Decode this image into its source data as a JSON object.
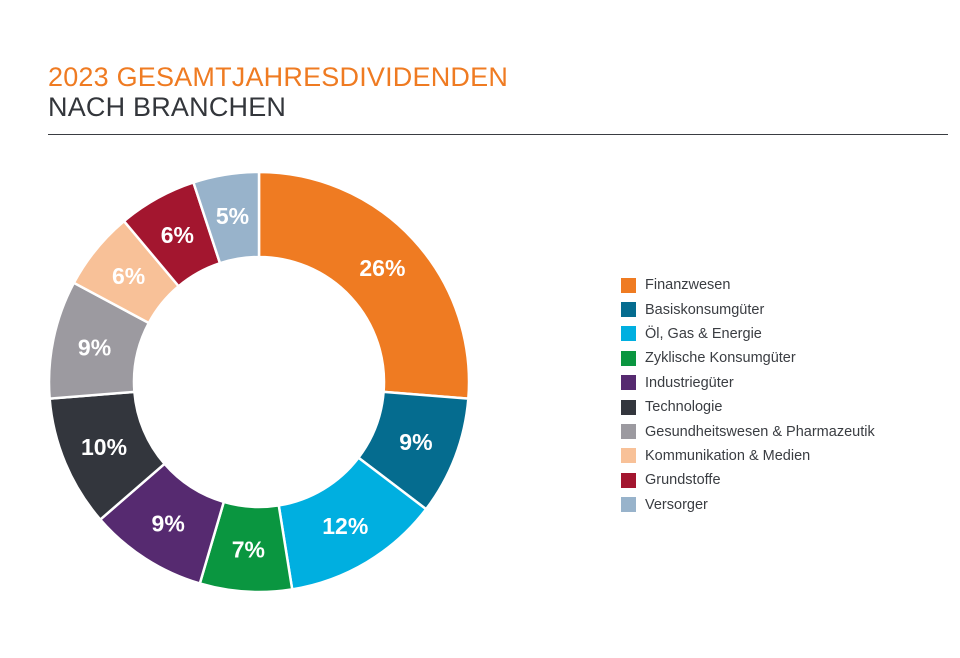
{
  "header": {
    "title_line1": "2023 GESAMTJAHRESDIVIDENDEN",
    "title_line2": "NACH BRANCHEN"
  },
  "chart_data": {
    "type": "pie",
    "variant": "donut",
    "title": "2023 GESAMTJAHRESDIVIDENDEN NACH BRANCHEN",
    "legend_position": "right",
    "value_unit": "%",
    "categories": [
      "Finanzwesen",
      "Basiskonsumgüter",
      "Öl, Gas & Energie",
      "Zyklische Konsumgüter",
      "Industriegüter",
      "Technologie",
      "Gesundheitswesen & Pharmazeutik",
      "Kommunikation & Medien",
      "Grundstoffe",
      "Versorger"
    ],
    "values": [
      26,
      9,
      12,
      7,
      9,
      10,
      9,
      6,
      6,
      5
    ],
    "labels": [
      "26%",
      "9%",
      "12%",
      "7%",
      "9%",
      "10%",
      "9%",
      "6%",
      "6%",
      "5%"
    ],
    "colors": [
      "#ef7b22",
      "#056c8f",
      "#00afe0",
      "#0a9640",
      "#562a70",
      "#33363d",
      "#9c9aa0",
      "#f8c198",
      "#a3162f",
      "#98b3cb"
    ]
  }
}
